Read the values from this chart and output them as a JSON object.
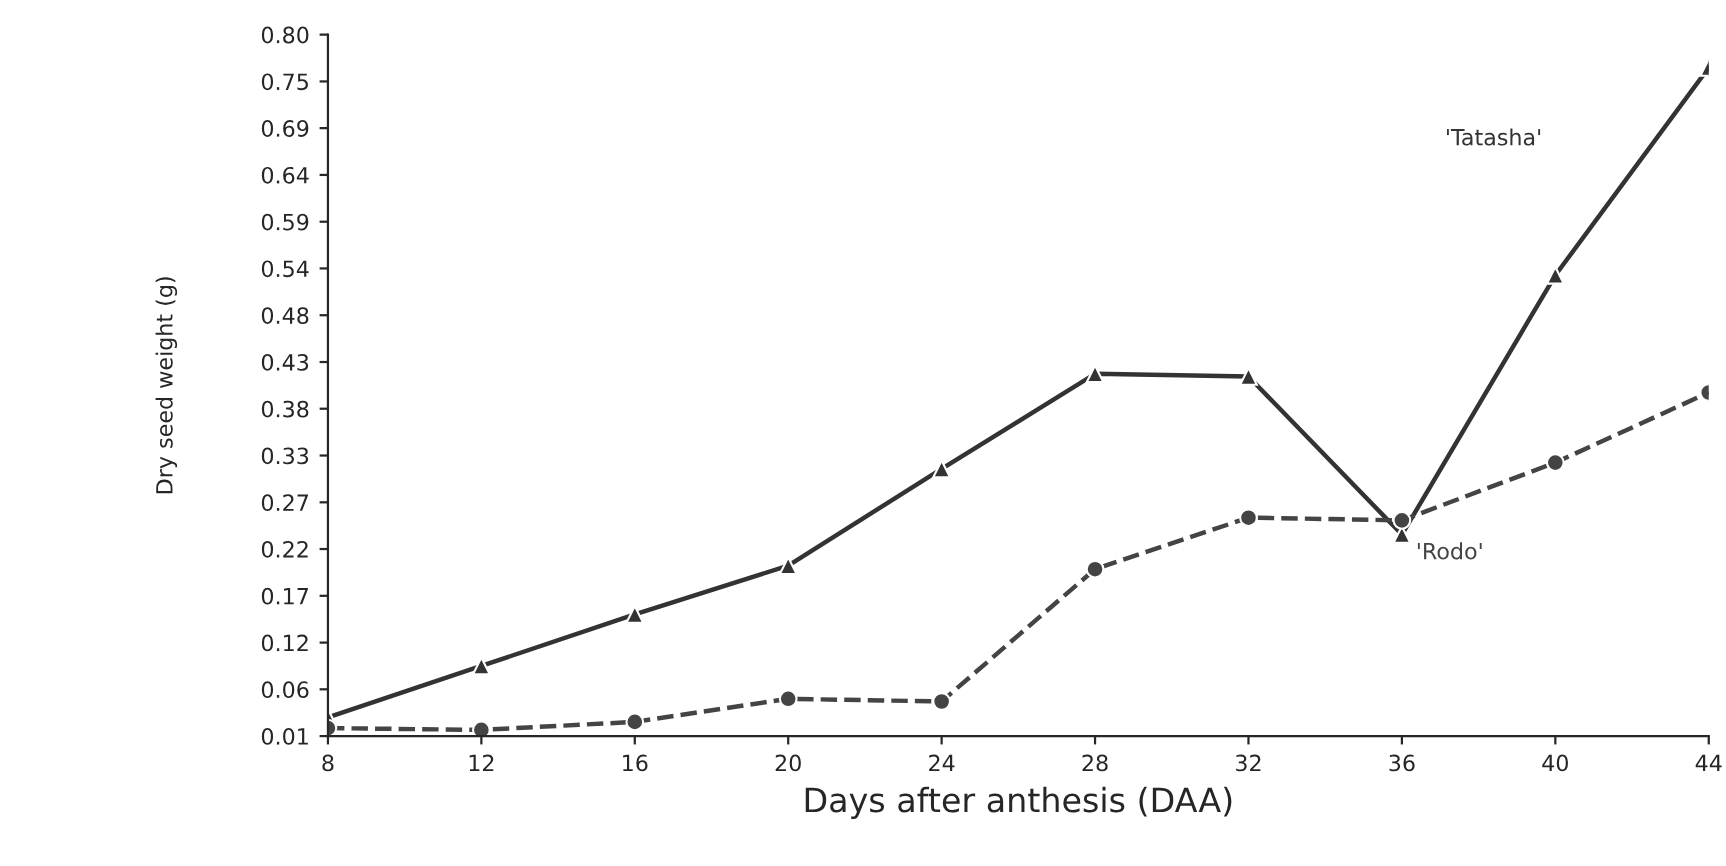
{
  "chart_data": {
    "type": "line",
    "xlabel": "Days after anthesis (DAA)",
    "ylabel": "Dry seed weight (g)",
    "x": [
      8,
      12,
      16,
      20,
      24,
      28,
      32,
      36,
      40,
      44
    ],
    "series": [
      {
        "name": "'Tatasha'",
        "color": "#333333",
        "marker": "triangle",
        "line_style": "solid",
        "values": [
          0.031,
          0.089,
          0.147,
          0.202,
          0.311,
          0.418,
          0.415,
          0.237,
          0.529,
          0.763
        ]
      },
      {
        "name": "'Rodo'",
        "color": "#444444",
        "marker": "circle",
        "line_style": "dashed",
        "values": [
          0.019,
          0.017,
          0.026,
          0.052,
          0.049,
          0.198,
          0.256,
          0.253,
          0.318,
          0.397
        ]
      }
    ],
    "xlim": [
      8,
      44
    ],
    "xticks": [
      8,
      12,
      16,
      20,
      24,
      28,
      32,
      36,
      40,
      44
    ],
    "ylim": [
      0.01,
      0.8
    ],
    "yticks": [
      {
        "value": 0.01,
        "label": "0.01"
      },
      {
        "value": 0.0627,
        "label": "0.06"
      },
      {
        "value": 0.1153,
        "label": "0.12"
      },
      {
        "value": 0.168,
        "label": "0.17"
      },
      {
        "value": 0.2207,
        "label": "0.22"
      },
      {
        "value": 0.2733,
        "label": "0.27"
      },
      {
        "value": 0.326,
        "label": "0.33"
      },
      {
        "value": 0.3787,
        "label": "0.38"
      },
      {
        "value": 0.4313,
        "label": "0.43"
      },
      {
        "value": 0.484,
        "label": "0.48"
      },
      {
        "value": 0.5367,
        "label": "0.54"
      },
      {
        "value": 0.5893,
        "label": "0.59"
      },
      {
        "value": 0.642,
        "label": "0.64"
      },
      {
        "value": 0.6947,
        "label": "0.69"
      },
      {
        "value": 0.7473,
        "label": "0.75"
      },
      {
        "value": 0.8,
        "label": "0.80"
      }
    ]
  }
}
